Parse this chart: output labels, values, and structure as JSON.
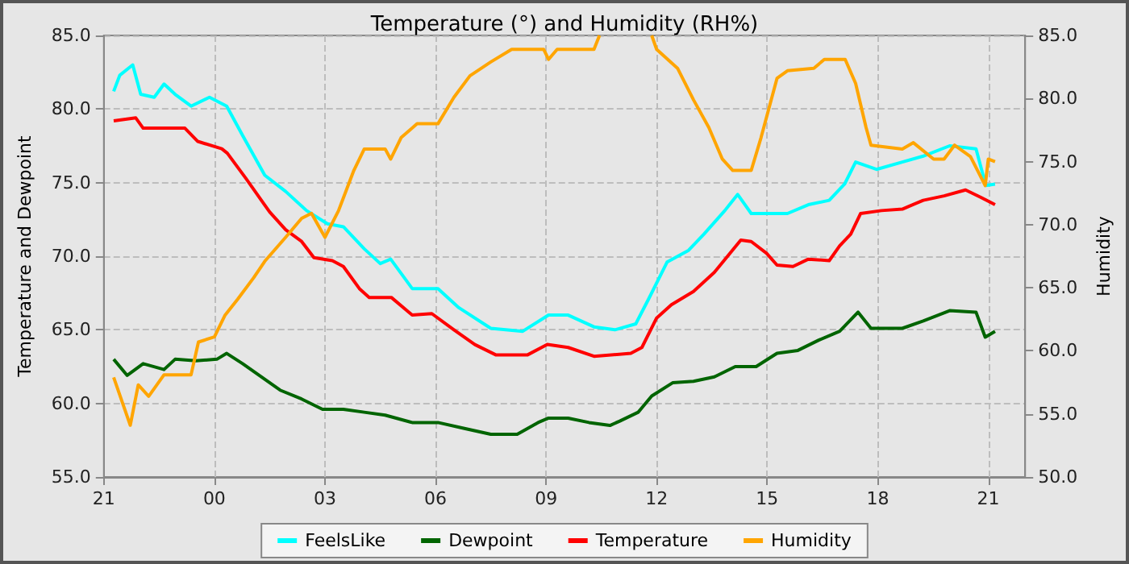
{
  "chart_data": {
    "type": "line",
    "title": "Temperature (°) and Humidity (RH%)",
    "ylabel": "Temperature and Dewpoint",
    "y2label": "Humidity",
    "xlim": [
      "2000-01-01T21:00",
      "2000-01-02T22:00"
    ],
    "xticks": [
      {
        "value": "2000-01-01T21:00",
        "label": "21"
      },
      {
        "value": "2000-01-02T00:00",
        "label": "00"
      },
      {
        "value": "2000-01-02T03:00",
        "label": "03"
      },
      {
        "value": "2000-01-02T06:00",
        "label": "06"
      },
      {
        "value": "2000-01-02T09:00",
        "label": "09"
      },
      {
        "value": "2000-01-02T12:00",
        "label": "12"
      },
      {
        "value": "2000-01-02T15:00",
        "label": "15"
      },
      {
        "value": "2000-01-02T18:00",
        "label": "18"
      },
      {
        "value": "2000-01-02T21:00",
        "label": "21"
      }
    ],
    "ylim": [
      55,
      85
    ],
    "yticks": [
      {
        "value": 55,
        "label": "55.0"
      },
      {
        "value": 60,
        "label": "60.0"
      },
      {
        "value": 65,
        "label": "65.0"
      },
      {
        "value": 70,
        "label": "70.0"
      },
      {
        "value": 75,
        "label": "75.0"
      },
      {
        "value": 80,
        "label": "80.0"
      },
      {
        "value": 85,
        "label": "85.0"
      }
    ],
    "y2lim": [
      50,
      85
    ],
    "y2ticks": [
      {
        "value": 50,
        "label": "50.0"
      },
      {
        "value": 55,
        "label": "55.0"
      },
      {
        "value": 60,
        "label": "60.0"
      },
      {
        "value": 65,
        "label": "65.0"
      },
      {
        "value": 70,
        "label": "70.0"
      },
      {
        "value": 75,
        "label": "75.0"
      },
      {
        "value": 80,
        "label": "80.0"
      },
      {
        "value": 85,
        "label": "85.0"
      }
    ],
    "grid": true,
    "legend": "bottom",
    "marker": "none",
    "line_style": "solid",
    "series": [
      {
        "name": "FeelsLike",
        "color": "#00ffff",
        "x": [
          "2000-01-01T21:16",
          "2000-01-01T21:26",
          "2000-01-01T21:47",
          "2000-01-01T22:00",
          "2000-01-01T22:22",
          "2000-01-01T22:38",
          "2000-01-01T22:56",
          "2000-01-01T23:22",
          "2000-01-01T23:52",
          "2000-01-02T00:20",
          "2000-01-02T00:46",
          "2000-01-02T01:22",
          "2000-01-02T01:56",
          "2000-01-02T02:30",
          "2000-01-02T03:04",
          "2000-01-02T03:30",
          "2000-01-02T04:04",
          "2000-01-02T04:30",
          "2000-01-02T04:47",
          "2000-01-02T05:22",
          "2000-01-02T06:04",
          "2000-01-02T06:38",
          "2000-01-02T07:30",
          "2000-01-02T08:22",
          "2000-01-02T09:04",
          "2000-01-02T09:36",
          "2000-01-02T10:18",
          "2000-01-02T10:52",
          "2000-01-02T11:26",
          "2000-01-02T11:47",
          "2000-01-02T12:17",
          "2000-01-02T12:52",
          "2000-01-02T13:17",
          "2000-01-02T13:51",
          "2000-01-02T14:12",
          "2000-01-02T14:34",
          "2000-01-02T14:59",
          "2000-01-02T15:33",
          "2000-01-02T16:07",
          "2000-01-02T16:41",
          "2000-01-02T17:06",
          "2000-01-02T17:24",
          "2000-01-02T17:58",
          "2000-01-02T18:40",
          "2000-01-02T19:14",
          "2000-01-02T19:57",
          "2000-01-02T20:40",
          "2000-01-02T20:56",
          "2000-01-02T21:11"
        ],
        "values": [
          81.2,
          82.3,
          83.0,
          81,
          80.8,
          81.7,
          81,
          80.2,
          80.8,
          80.2,
          78.2,
          75.5,
          74.4,
          73.1,
          72.2,
          72.0,
          70.5,
          69.5,
          69.8,
          67.8,
          67.8,
          66.5,
          65.1,
          64.9,
          66.0,
          66.0,
          65.2,
          65.0,
          65.4,
          67.1,
          69.6,
          70.4,
          71.5,
          73.1,
          74.2,
          72.9,
          72.9,
          72.9,
          73.5,
          73.8,
          74.9,
          76.4,
          75.9,
          76.4,
          76.8,
          77.5,
          77.3,
          74.8,
          74.9
        ]
      },
      {
        "name": "Dewpoint",
        "color": "#006400",
        "x": [
          "2000-01-01T21:16",
          "2000-01-01T21:38",
          "2000-01-01T22:04",
          "2000-01-01T22:38",
          "2000-01-01T22:56",
          "2000-01-01T23:30",
          "2000-01-02T00:04",
          "2000-01-02T00:20",
          "2000-01-02T00:46",
          "2000-01-02T01:13",
          "2000-01-02T01:47",
          "2000-01-02T02:22",
          "2000-01-02T02:56",
          "2000-01-02T03:30",
          "2000-01-02T04:04",
          "2000-01-02T04:38",
          "2000-01-02T05:22",
          "2000-01-02T06:04",
          "2000-01-02T06:47",
          "2000-01-02T07:30",
          "2000-01-02T08:13",
          "2000-01-02T08:47",
          "2000-01-02T09:04",
          "2000-01-02T09:36",
          "2000-01-02T10:10",
          "2000-01-02T10:44",
          "2000-01-02T11:00",
          "2000-01-02T11:30",
          "2000-01-02T11:52",
          "2000-01-02T12:26",
          "2000-01-02T13:00",
          "2000-01-02T13:34",
          "2000-01-02T14:08",
          "2000-01-02T14:42",
          "2000-01-02T15:16",
          "2000-01-02T15:50",
          "2000-01-02T16:24",
          "2000-01-02T16:58",
          "2000-01-02T17:28",
          "2000-01-02T17:49",
          "2000-01-02T18:40",
          "2000-01-02T19:14",
          "2000-01-02T19:57",
          "2000-01-02T20:40",
          "2000-01-02T20:55",
          "2000-01-02T21:11"
        ],
        "values": [
          63.0,
          61.9,
          62.7,
          62.3,
          63.0,
          62.9,
          63.0,
          63.4,
          62.7,
          61.9,
          60.9,
          60.3,
          59.6,
          59.6,
          59.4,
          59.2,
          58.7,
          58.7,
          58.3,
          57.9,
          57.9,
          58.7,
          59.0,
          59.0,
          58.7,
          58.5,
          58.8,
          59.4,
          60.5,
          61.4,
          61.5,
          61.8,
          62.5,
          62.5,
          63.4,
          63.6,
          64.3,
          64.9,
          66.2,
          65.1,
          65.1,
          65.6,
          66.3,
          66.2,
          64.5,
          64.9
        ]
      },
      {
        "name": "Temperature",
        "color": "#ff0000",
        "x": [
          "2000-01-01T21:16",
          "2000-01-01T21:52",
          "2000-01-01T22:04",
          "2000-01-01T23:12",
          "2000-01-01T23:33",
          "2000-01-02T00:12",
          "2000-01-02T00:21",
          "2000-01-02T00:51",
          "2000-01-02T01:30",
          "2000-01-02T01:56",
          "2000-01-02T02:22",
          "2000-01-02T02:42",
          "2000-01-02T03:12",
          "2000-01-02T03:30",
          "2000-01-02T03:56",
          "2000-01-02T04:12",
          "2000-01-02T04:48",
          "2000-01-02T05:22",
          "2000-01-02T05:54",
          "2000-01-02T06:30",
          "2000-01-02T07:04",
          "2000-01-02T07:38",
          "2000-01-02T08:30",
          "2000-01-02T09:02",
          "2000-01-02T09:36",
          "2000-01-02T10:18",
          "2000-01-02T11:18",
          "2000-01-02T11:36",
          "2000-01-02T12:00",
          "2000-01-02T12:24",
          "2000-01-02T13:00",
          "2000-01-02T13:34",
          "2000-01-02T14:17",
          "2000-01-02T14:34",
          "2000-01-02T14:59",
          "2000-01-02T15:16",
          "2000-01-02T15:42",
          "2000-01-02T16:07",
          "2000-01-02T16:41",
          "2000-01-02T16:58",
          "2000-01-02T17:16",
          "2000-01-02T17:32",
          "2000-01-02T18:06",
          "2000-01-02T18:40",
          "2000-01-02T19:14",
          "2000-01-02T19:48",
          "2000-01-02T20:23",
          "2000-01-02T20:48",
          "2000-01-02T21:11"
        ],
        "values": [
          79.2,
          79.4,
          78.7,
          78.7,
          77.8,
          77.3,
          77.0,
          75.3,
          73.0,
          71.8,
          71.0,
          69.9,
          69.7,
          69.3,
          67.8,
          67.2,
          67.2,
          66.0,
          66.1,
          65.0,
          64.0,
          63.3,
          63.3,
          64.0,
          63.8,
          63.2,
          63.4,
          63.8,
          65.8,
          66.7,
          67.6,
          68.9,
          71.1,
          71.0,
          70.2,
          69.4,
          69.3,
          69.8,
          69.7,
          70.7,
          71.5,
          72.9,
          73.1,
          73.2,
          73.8,
          74.1,
          74.5,
          74.0,
          73.5
        ]
      },
      {
        "name": "Humidity",
        "color": "#ffa500",
        "axis": "y2",
        "x": [
          "2000-01-01T21:16",
          "2000-01-01T21:43",
          "2000-01-01T21:56",
          "2000-01-01T22:13",
          "2000-01-01T22:38",
          "2000-01-01T23:22",
          "2000-01-01T23:34",
          "2000-01-02T00:00",
          "2000-01-02T00:17",
          "2000-01-02T00:38",
          "2000-01-02T01:04",
          "2000-01-02T01:22",
          "2000-01-02T01:56",
          "2000-01-02T02:22",
          "2000-01-02T02:38",
          "2000-01-02T03:00",
          "2000-01-02T03:22",
          "2000-01-02T03:47",
          "2000-01-02T04:04",
          "2000-01-02T04:38",
          "2000-01-02T04:47",
          "2000-01-02T05:04",
          "2000-01-02T05:30",
          "2000-01-02T06:04",
          "2000-01-02T06:30",
          "2000-01-02T06:56",
          "2000-01-02T07:30",
          "2000-01-02T08:04",
          "2000-01-02T08:56",
          "2000-01-02T09:04",
          "2000-01-02T09:18",
          "2000-01-02T10:18",
          "2000-01-02T10:27",
          "2000-01-02T11:00",
          "2000-01-02T11:52",
          "2000-01-02T12:00",
          "2000-01-02T12:34",
          "2000-01-02T13:00",
          "2000-01-02T13:25",
          "2000-01-02T13:47",
          "2000-01-02T14:04",
          "2000-01-02T14:34",
          "2000-01-02T14:50",
          "2000-01-02T15:16",
          "2000-01-02T15:33",
          "2000-01-02T16:16",
          "2000-01-02T16:33",
          "2000-01-02T17:07",
          "2000-01-02T17:24",
          "2000-01-02T17:41",
          "2000-01-02T17:49",
          "2000-01-02T18:40",
          "2000-01-02T18:58",
          "2000-01-02T19:31",
          "2000-01-02T19:48",
          "2000-01-02T20:05",
          "2000-01-02T20:31",
          "2000-01-02T20:55",
          "2000-01-02T21:00",
          "2000-01-02T21:11"
        ],
        "values": [
          57.9,
          54.1,
          57.3,
          56.4,
          58.1,
          58.1,
          60.7,
          61.1,
          62.8,
          64.1,
          65.8,
          67.1,
          69.0,
          70.5,
          70.9,
          69.0,
          71.1,
          74.3,
          76.0,
          76.0,
          75.2,
          76.9,
          78.0,
          78.0,
          80.1,
          81.8,
          82.9,
          83.9,
          83.9,
          83.1,
          83.9,
          83.9,
          85,
          null,
          85,
          83.9,
          82.4,
          79.9,
          77.7,
          75.2,
          74.3,
          74.3,
          76.9,
          81.6,
          82.2,
          82.4,
          83.1,
          83.1,
          81.2,
          77.7,
          76.3,
          76.0,
          76.5,
          75.2,
          75.2,
          76.3,
          75.4,
          73.1,
          75.2,
          75.0
        ]
      }
    ]
  }
}
